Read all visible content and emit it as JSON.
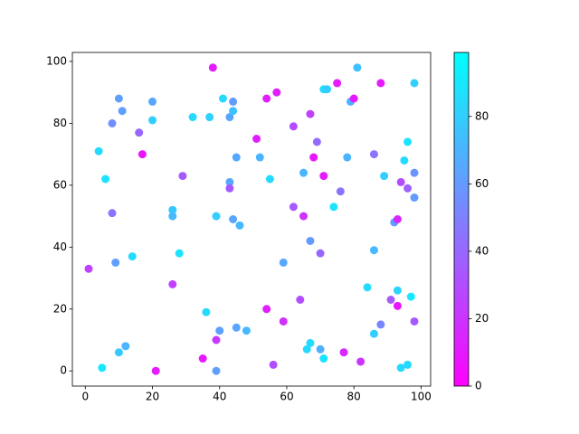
{
  "chart_data": {
    "type": "scatter",
    "x": [
      1,
      5,
      4,
      6,
      8,
      8,
      9,
      10,
      11,
      10,
      12,
      14,
      16,
      17,
      20,
      20,
      21,
      26,
      26,
      26,
      28,
      29,
      32,
      35,
      36,
      37,
      38,
      39,
      39,
      39,
      40,
      41,
      43,
      43,
      43,
      44,
      44,
      44,
      45,
      45,
      46,
      48,
      51,
      52,
      54,
      54,
      55,
      56,
      57,
      59,
      59,
      62,
      62,
      64,
      65,
      65,
      66,
      67,
      67,
      67,
      68,
      69,
      70,
      70,
      71,
      71,
      71,
      72,
      74,
      75,
      76,
      77,
      78,
      79,
      80,
      81,
      82,
      84,
      86,
      86,
      86,
      88,
      88,
      89,
      91,
      92,
      93,
      93,
      93,
      94,
      94,
      95,
      96,
      96,
      96,
      97,
      98,
      98,
      98,
      98
    ],
    "y": [
      33,
      1,
      71,
      62,
      80,
      51,
      35,
      88,
      84,
      6,
      8,
      37,
      77,
      70,
      87,
      81,
      0,
      52,
      50,
      28,
      38,
      63,
      82,
      4,
      19,
      82,
      98,
      10,
      0,
      50,
      13,
      88,
      82,
      61,
      59,
      87,
      84,
      49,
      69,
      14,
      47,
      13,
      75,
      69,
      88,
      20,
      62,
      2,
      90,
      16,
      35,
      79,
      53,
      23,
      64,
      50,
      7,
      9,
      83,
      42,
      69,
      74,
      38,
      7,
      4,
      63,
      91,
      91,
      53,
      93,
      58,
      6,
      69,
      87,
      88,
      98,
      3,
      27,
      70,
      39,
      12,
      15,
      93,
      63,
      23,
      48,
      49,
      21,
      26,
      61,
      1,
      68,
      74,
      59,
      2,
      24,
      16,
      56,
      64,
      93
    ],
    "c": [
      25,
      90,
      85,
      88,
      55,
      45,
      62,
      62,
      62,
      78,
      70,
      85,
      40,
      8,
      65,
      80,
      10,
      78,
      72,
      25,
      88,
      35,
      85,
      10,
      85,
      82,
      10,
      22,
      62,
      80,
      62,
      85,
      65,
      65,
      35,
      60,
      75,
      65,
      65,
      65,
      72,
      72,
      12,
      70,
      12,
      12,
      85,
      30,
      12,
      18,
      65,
      30,
      35,
      30,
      70,
      20,
      85,
      85,
      25,
      60,
      8,
      42,
      40,
      68,
      88,
      10,
      85,
      80,
      88,
      10,
      45,
      15,
      70,
      68,
      10,
      75,
      20,
      85,
      45,
      72,
      80,
      52,
      10,
      80,
      35,
      60,
      15,
      8,
      82,
      30,
      85,
      85,
      88,
      38,
      85,
      90,
      35,
      60,
      58,
      80
    ],
    "colormap": [
      "#ff00ff",
      "#00ffff"
    ],
    "xlim": [
      -3.85,
      102.85
    ],
    "ylim": [
      -4.9,
      102.9
    ],
    "xticks": [
      0,
      20,
      40,
      60,
      80,
      100
    ],
    "yticks": [
      0,
      20,
      40,
      60,
      80,
      100
    ],
    "clim": [
      0,
      99
    ],
    "cticks": [
      0,
      20,
      40,
      60,
      80
    ]
  }
}
